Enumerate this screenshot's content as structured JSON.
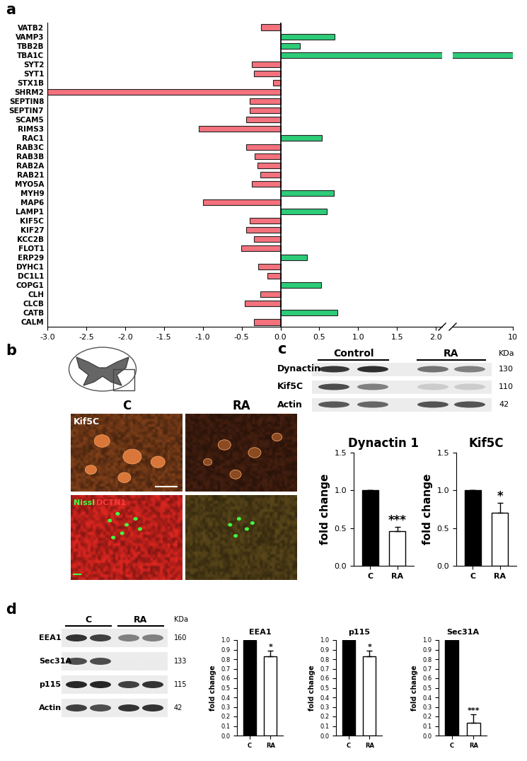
{
  "panel_labels": [
    "a",
    "b",
    "c",
    "d"
  ],
  "chart_data": [
    {
      "type": "bar",
      "orientation": "horizontal",
      "categories": [
        "VATB2",
        "VAMP3",
        "TBB2B",
        "TBA1C",
        "SYT2",
        "SYT1",
        "STX1B",
        "SHRM2",
        "SEPTIN8",
        "SEPTIN7",
        "SCAM5",
        "RIMS3",
        "RAC1",
        "RAB3C",
        "RAB3B",
        "RAB2A",
        "RAB21",
        "MYO5A",
        "MYH9",
        "MAP6",
        "LAMP1",
        "KIF5C",
        "KIF27",
        "KCC2B",
        "FLOT1",
        "ERP29",
        "DYHC1",
        "DC1L1",
        "COPG1",
        "CLH",
        "CLCB",
        "CATB",
        "CALM"
      ],
      "values": [
        -0.25,
        0.7,
        0.25,
        10,
        -0.37,
        -0.34,
        -0.1,
        -3.0,
        -0.4,
        -0.4,
        -0.44,
        -1.05,
        0.53,
        -0.44,
        -0.33,
        -0.3,
        -0.26,
        -0.37,
        0.69,
        -1.0,
        0.6,
        -0.4,
        -0.44,
        -0.34,
        -0.51,
        0.34,
        -0.29,
        -0.17,
        0.52,
        -0.26,
        -0.46,
        0.73,
        -0.34
      ],
      "colors": [
        "#f4727d",
        "#2dcc78",
        "#2dcc78",
        "#2dcc78",
        "#f4727d",
        "#f4727d",
        "#f4727d",
        "#f4727d",
        "#f4727d",
        "#f4727d",
        "#f4727d",
        "#f4727d",
        "#2dcc78",
        "#f4727d",
        "#f4727d",
        "#f4727d",
        "#f4727d",
        "#f4727d",
        "#2dcc78",
        "#f4727d",
        "#2dcc78",
        "#f4727d",
        "#f4727d",
        "#f4727d",
        "#f4727d",
        "#2dcc78",
        "#f4727d",
        "#f4727d",
        "#2dcc78",
        "#f4727d",
        "#f4727d",
        "#2dcc78",
        "#f4727d"
      ],
      "xlim": [
        -3.0,
        10
      ],
      "xticks": [
        -3.0,
        -2.5,
        -2.0,
        -1.5,
        -1.0,
        -0.5,
        0.0,
        0.5,
        1.0,
        1.5,
        2.0,
        10
      ]
    },
    {
      "type": "bar",
      "title": "Dynactin 1",
      "categories": [
        "C",
        "RA"
      ],
      "values": [
        1.0,
        0.46
      ],
      "errors": [
        0,
        0.06
      ],
      "colors": [
        "#000000",
        "#ffffff"
      ],
      "ylim": [
        0.0,
        1.5
      ],
      "yticks": [
        0.0,
        0.5,
        1.0,
        1.5
      ],
      "y_label": "fold change",
      "annotations": [
        {
          "text": "***",
          "category": "RA"
        }
      ]
    },
    {
      "type": "bar",
      "title": "Kif5C",
      "categories": [
        "C",
        "RA"
      ],
      "values": [
        1.0,
        0.7
      ],
      "errors": [
        0,
        0.13
      ],
      "colors": [
        "#000000",
        "#ffffff"
      ],
      "ylim": [
        0.0,
        1.5
      ],
      "yticks": [
        0.0,
        0.5,
        1.0,
        1.5
      ],
      "y_label": "fold change",
      "annotations": [
        {
          "text": "*",
          "category": "RA"
        }
      ]
    },
    {
      "type": "bar",
      "title": "EEA1",
      "categories": [
        "C",
        "RA"
      ],
      "values": [
        1.0,
        0.83
      ],
      "errors": [
        0,
        0.06
      ],
      "colors": [
        "#000000",
        "#ffffff"
      ],
      "ylim": [
        0.0,
        1.0
      ],
      "yticks": [
        0.0,
        0.1,
        0.2,
        0.3,
        0.4,
        0.5,
        0.6,
        0.7,
        0.8,
        0.9,
        1.0
      ],
      "y_label": "fold change",
      "annotations": [
        {
          "text": "*",
          "category": "RA"
        }
      ]
    },
    {
      "type": "bar",
      "title": "p115",
      "categories": [
        "C",
        "RA"
      ],
      "values": [
        1.0,
        0.83
      ],
      "errors": [
        0,
        0.06
      ],
      "colors": [
        "#000000",
        "#ffffff"
      ],
      "ylim": [
        0.0,
        1.0
      ],
      "yticks": [
        0.0,
        0.1,
        0.2,
        0.3,
        0.4,
        0.5,
        0.6,
        0.7,
        0.8,
        0.9,
        1.0
      ],
      "y_label": "fold change",
      "annotations": [
        {
          "text": "*",
          "category": "RA"
        }
      ]
    },
    {
      "type": "bar",
      "title": "Sec31A",
      "categories": [
        "C",
        "RA"
      ],
      "values": [
        1.0,
        0.13
      ],
      "errors": [
        0,
        0.09
      ],
      "colors": [
        "#000000",
        "#ffffff"
      ],
      "ylim": [
        0.0,
        1.0
      ],
      "yticks": [
        0.0,
        0.1,
        0.2,
        0.3,
        0.4,
        0.5,
        0.6,
        0.7,
        0.8,
        0.9,
        1.0
      ],
      "y_label": "fold change",
      "annotations": [
        {
          "text": "***",
          "category": "RA"
        }
      ]
    }
  ],
  "micrographs": {
    "columns": [
      "C",
      "RA"
    ],
    "stains": [
      "Kif5C",
      "Nissl",
      "DCTN1"
    ]
  },
  "blots": [
    {
      "groups": [
        "Control",
        "RA"
      ],
      "unit": "KDa",
      "rows": [
        {
          "label": "Dynactin",
          "kda": 130
        },
        {
          "label": "Kif5C",
          "kda": 110
        },
        {
          "label": "Actin",
          "kda": 42
        }
      ]
    },
    {
      "groups": [
        "C",
        "RA"
      ],
      "unit": "KDa",
      "rows": [
        {
          "label": "EEA1",
          "kda": 160
        },
        {
          "label": "Sec31A",
          "kda": 133
        },
        {
          "label": "p115",
          "kda": 115
        },
        {
          "label": "Actin",
          "kda": 42
        }
      ]
    }
  ]
}
